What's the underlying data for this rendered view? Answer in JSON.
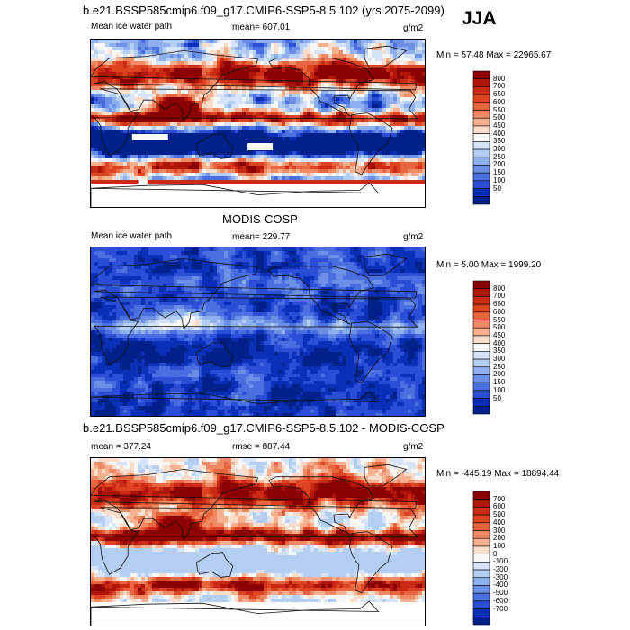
{
  "season": "JJA",
  "panels": [
    {
      "id": "model",
      "title": "b.e21.BSSP585cmip6.f09_g17.CMIP6-SSP5-8.5.102 (yrs 2075-2099)",
      "left_label": "Mean ice water path",
      "center_label": "mean= 607.01",
      "units": "g/m2",
      "minmax": "Min =  57.48 Max = 22965.67",
      "colorbar": {
        "labels": [
          "800",
          "700",
          "650",
          "600",
          "550",
          "500",
          "450",
          "400",
          "350",
          "300",
          "250",
          "200",
          "150",
          "100",
          "50"
        ],
        "colors": [
          "#8b0000",
          "#b0150a",
          "#cb2a14",
          "#dd4422",
          "#e8663f",
          "#f08a64",
          "#f7b08f",
          "#fcdcca",
          "#f7f7f7",
          "#d6e3f8",
          "#b4cdf3",
          "#8fb0ee",
          "#6b90e6",
          "#4a6fe0",
          "#2a4fd6",
          "#0b30b8",
          "#00208a"
        ]
      },
      "palette": "warm"
    },
    {
      "id": "obs",
      "title": "MODIS-COSP",
      "left_label": "Mean ice water path",
      "center_label": "mean= 229.77",
      "units": "g/m2",
      "minmax": "Min =   5.00 Max = 1999.20",
      "colorbar": {
        "labels": [
          "800",
          "700",
          "650",
          "600",
          "550",
          "500",
          "450",
          "400",
          "350",
          "300",
          "250",
          "200",
          "150",
          "100",
          "50"
        ],
        "colors": [
          "#8b0000",
          "#b0150a",
          "#cb2a14",
          "#dd4422",
          "#e8663f",
          "#f08a64",
          "#f7b08f",
          "#fcdcca",
          "#f7f7f7",
          "#d6e3f8",
          "#b4cdf3",
          "#8fb0ee",
          "#6b90e6",
          "#4a6fe0",
          "#2a4fd6",
          "#0b30b8",
          "#00208a"
        ]
      },
      "palette": "cool"
    },
    {
      "id": "diff",
      "title": "b.e21.BSSP585cmip6.f09_g17.CMIP6-SSP5-8.5.102 - MODIS-COSP",
      "left_label": "mean = 377.24",
      "center_label": "rmse = 887.44",
      "units": "g/m2",
      "minmax": "Min = -445.19 Max = 18894.44",
      "colorbar": {
        "labels": [
          "700",
          "600",
          "500",
          "400",
          "300",
          "200",
          "100",
          "0",
          "-100",
          "-200",
          "-300",
          "-400",
          "-500",
          "-600",
          "-700"
        ],
        "colors": [
          "#8b0000",
          "#b0150a",
          "#cb2a14",
          "#dd4422",
          "#e8663f",
          "#f08a64",
          "#f7b08f",
          "#fcdcca",
          "#f7f7f7",
          "#d6e3f8",
          "#b4cdf3",
          "#8fb0ee",
          "#6b90e6",
          "#4a6fe0",
          "#2a4fd6",
          "#0b30b8",
          "#00208a"
        ]
      },
      "palette": "diff"
    }
  ],
  "chart_data": [
    {
      "type": "heatmap",
      "title": "b.e21.BSSP585cmip6.f09_g17.CMIP6-SSP5-8.5.102 (yrs 2075-2099)",
      "variable": "Mean ice water path",
      "units": "g/m2",
      "mean": 607.01,
      "min": 57.48,
      "max": 22965.67,
      "levels": [
        50,
        100,
        150,
        200,
        250,
        300,
        350,
        400,
        450,
        500,
        550,
        600,
        650,
        700,
        800
      ]
    },
    {
      "type": "heatmap",
      "title": "MODIS-COSP",
      "variable": "Mean ice water path",
      "units": "g/m2",
      "mean": 229.77,
      "min": 5.0,
      "max": 1999.2,
      "levels": [
        50,
        100,
        150,
        200,
        250,
        300,
        350,
        400,
        450,
        500,
        550,
        600,
        650,
        700,
        800
      ]
    },
    {
      "type": "heatmap",
      "title": "b.e21.BSSP585cmip6.f09_g17.CMIP6-SSP5-8.5.102 - MODIS-COSP",
      "units": "g/m2",
      "mean": 377.24,
      "rmse": 887.44,
      "min": -445.19,
      "max": 18894.44,
      "levels": [
        -700,
        -600,
        -500,
        -400,
        -300,
        -200,
        -100,
        0,
        100,
        200,
        300,
        400,
        500,
        600,
        700
      ]
    }
  ]
}
